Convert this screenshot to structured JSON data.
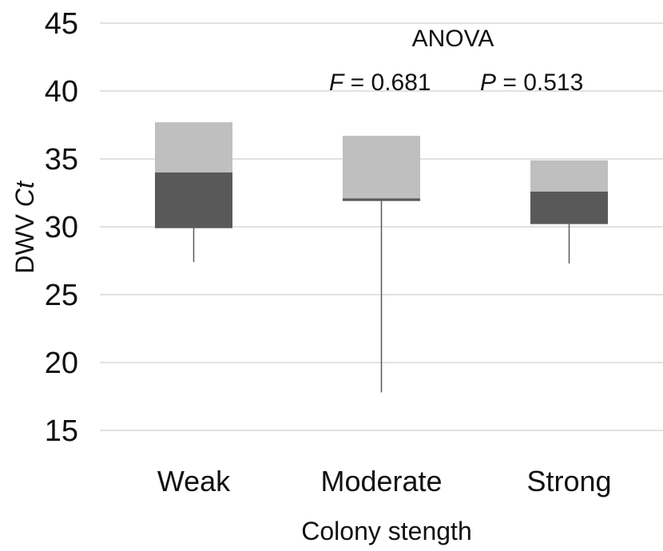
{
  "chart_data": {
    "type": "box",
    "categories": [
      "Weak",
      "Moderate",
      "Strong"
    ],
    "boxes": [
      {
        "category": "Weak",
        "min": 27.4,
        "q1": 29.9,
        "median": 34.0,
        "q3": 37.7,
        "max": 37.7
      },
      {
        "category": "Moderate",
        "min": 17.8,
        "q1": 31.9,
        "median": 32.1,
        "q3": 36.7,
        "max": 36.7
      },
      {
        "category": "Strong",
        "min": 27.3,
        "q1": 30.2,
        "median": 32.6,
        "q3": 34.9,
        "max": 34.9
      }
    ],
    "xlabel": "Colony stength",
    "ylabel_main": "DWV ",
    "ylabel_italic": "Ct",
    "ylim": [
      15,
      45
    ],
    "yticks": [
      15,
      20,
      25,
      30,
      35,
      40,
      45
    ],
    "grid": true,
    "annotation": {
      "title": "ANOVA",
      "f_symbol": "F",
      "f_value": " = 0.681",
      "p_symbol": "P",
      "p_value": " = 0.513"
    },
    "colors": {
      "lower_box": "#595959",
      "upper_box": "#bfbfbf",
      "whisker": "#595959",
      "grid": "#d9d9d9"
    }
  }
}
